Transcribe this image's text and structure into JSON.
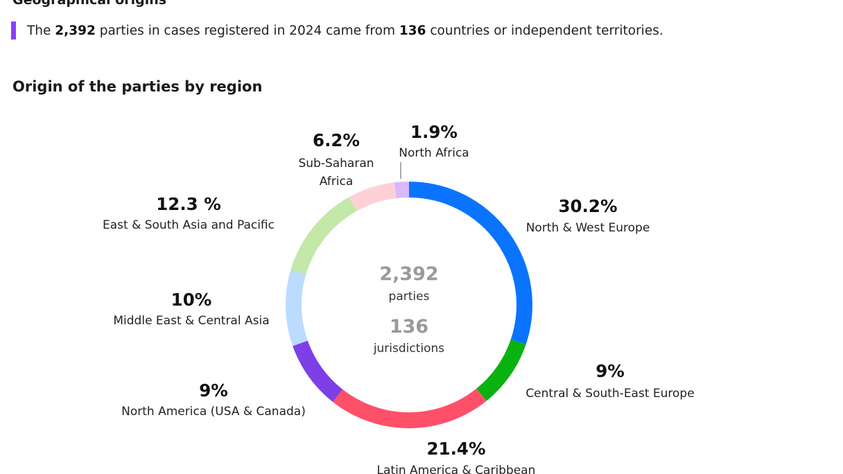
{
  "header": {
    "section_title": "Geographical origins",
    "intro": {
      "prefix": "The ",
      "parties_count": "2,392",
      "middle": " parties in cases registered in 2024 came from ",
      "countries_count": "136",
      "suffix": " countries or independent territories."
    }
  },
  "colors": {
    "accent_bar": "#8a3ffc"
  },
  "chart_data": {
    "type": "donut",
    "title": "Origin of the parties by region",
    "center": {
      "value1": "2,392",
      "label1": "parties",
      "value2": "136",
      "label2": "jurisdictions"
    },
    "series": [
      {
        "name": "North & West Europe",
        "label_lines": [
          "North & West Europe"
        ],
        "value": 30.2,
        "pct_text": "30.2%",
        "color": "#0a74ff"
      },
      {
        "name": "Central & South-East Europe",
        "label_lines": [
          "Central & South-East Europe"
        ],
        "value": 9,
        "pct_text": "9%",
        "color": "#08b20f"
      },
      {
        "name": "Latin America & Caribbean",
        "label_lines": [
          "Latin America & Caribbean"
        ],
        "value": 21.4,
        "pct_text": "21.4%",
        "color": "#ff5069"
      },
      {
        "name": "North America (USA & Canada)",
        "label_lines": [
          "North America (USA & Canada)"
        ],
        "value": 9,
        "pct_text": "9%",
        "color": "#7f3fe8"
      },
      {
        "name": "Middle East & Central Asia",
        "label_lines": [
          "Middle East & Central Asia"
        ],
        "value": 10,
        "pct_text": "10%",
        "color": "#bcdcff"
      },
      {
        "name": "East & South Asia and Pacific",
        "label_lines": [
          "East & South Asia and Pacific"
        ],
        "value": 12.3,
        "pct_text": "12.3 %",
        "color": "#c3e8a8"
      },
      {
        "name": "Sub-Saharan Africa",
        "label_lines": [
          "Sub-Saharan",
          "Africa"
        ],
        "value": 6.2,
        "pct_text": "6.2%",
        "color": "#ffd1d5"
      },
      {
        "name": "North Africa",
        "label_lines": [
          "North Africa"
        ],
        "value": 1.9,
        "pct_text": "1.9%",
        "color": "#d9b8ff"
      }
    ]
  }
}
